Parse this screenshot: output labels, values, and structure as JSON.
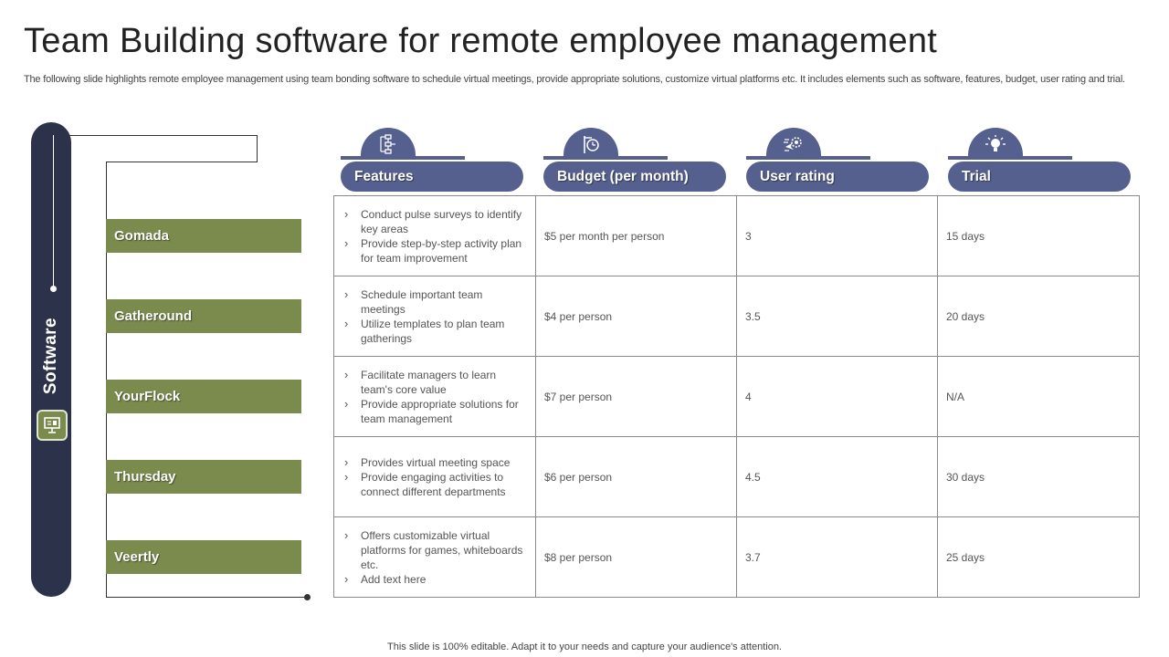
{
  "slide": {
    "title": "Team Building software for remote employee management",
    "subtitle": "The following slide highlights remote employee management using team bonding software to schedule virtual meetings, provide appropriate solutions, customize virtual platforms etc. It includes elements such as software, features, budget, user rating and trial.",
    "footer": "This slide is 100% editable. Adapt it to your needs and capture your audience's attention."
  },
  "sidebar": {
    "label": "Software",
    "icon": "presentation-board-icon"
  },
  "software": [
    "Gomada",
    "Gatheround",
    "YourFlock",
    "Thursday",
    "Veertly"
  ],
  "headers": [
    {
      "label": "Features",
      "icon": "flowchart-icon"
    },
    {
      "label": "Budget (per month)",
      "icon": "signpost-clock-icon"
    },
    {
      "label": "User rating",
      "icon": "cursor-gear-icon"
    },
    {
      "label": "Trial",
      "icon": "lightbulb-icon"
    }
  ],
  "rows": [
    {
      "features": [
        "Conduct pulse surveys to identify key areas",
        "Provide step-by-step activity plan for team improvement"
      ],
      "budget": "$5 per month per person",
      "rating": "3",
      "trial": "15 days"
    },
    {
      "features": [
        "Schedule important team meetings",
        "Utilize templates to plan team gatherings"
      ],
      "budget": "$4 per person",
      "rating": "3.5",
      "trial": "20 days"
    },
    {
      "features": [
        "Facilitate managers to learn team's core value",
        "Provide appropriate solutions for team management"
      ],
      "budget": "$7 per person",
      "rating": "4",
      "trial": "N/A"
    },
    {
      "features": [
        "Provides virtual meeting space",
        "Provide engaging activities to connect different departments"
      ],
      "budget": "$6 per person",
      "rating": "4.5",
      "trial": "30 days"
    },
    {
      "features": [
        "Offers customizable virtual platforms for games, whiteboards etc.",
        "Add text here"
      ],
      "budget": "$8 per person",
      "rating": "3.7",
      "trial": "25 days"
    }
  ],
  "colors": {
    "navy": "#2c3249",
    "header_blue": "#55608f",
    "olive": "#7b8b4e"
  }
}
